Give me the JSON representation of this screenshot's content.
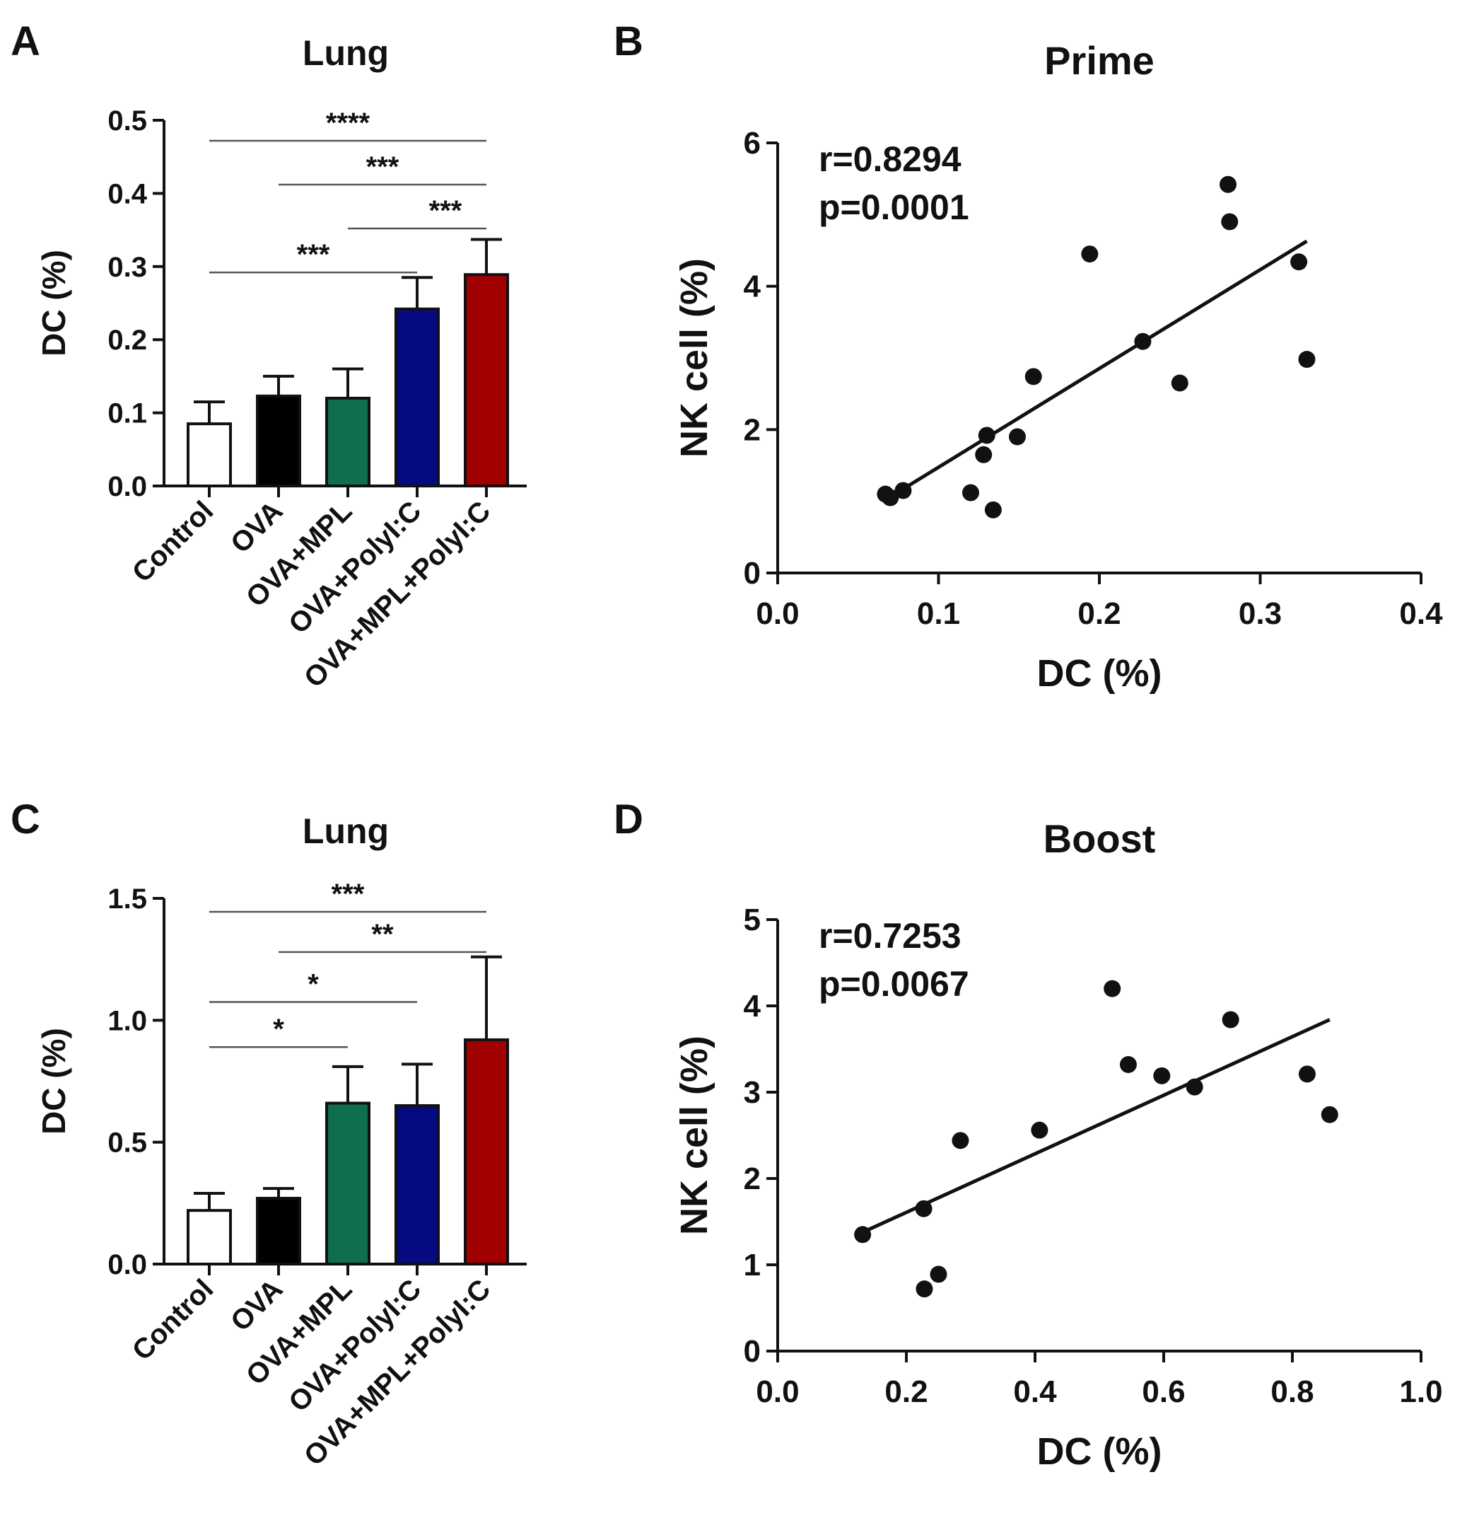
{
  "chart_data": [
    {
      "panel": "A",
      "type": "bar",
      "title": "Lung",
      "ylabel": "DC (%)",
      "xlabel": "",
      "ylim": [
        0,
        0.5
      ],
      "yticks": [
        "0.0",
        "0.1",
        "0.2",
        "0.3",
        "0.4",
        "0.5"
      ],
      "categories": [
        "Control",
        "OVA",
        "OVA+MPL",
        "OVA+PolyI:C",
        "OVA+MPL+PolyI:C"
      ],
      "values": [
        0.085,
        0.123,
        0.12,
        0.242,
        0.289
      ],
      "errors": [
        0.03,
        0.027,
        0.04,
        0.043,
        0.048
      ],
      "colors": [
        "#ffffff",
        "#000000",
        "#0f6e4e",
        "#050a80",
        "#a00000"
      ],
      "significance": [
        {
          "from": 0,
          "to": 4,
          "label": "****",
          "y": 0.472
        },
        {
          "from": 1,
          "to": 4,
          "label": "***",
          "y": 0.412
        },
        {
          "from": 2,
          "to": 4,
          "label": "***",
          "y": 0.352
        },
        {
          "from": 0,
          "to": 3,
          "label": "***",
          "y": 0.292
        }
      ]
    },
    {
      "panel": "B",
      "type": "scatter",
      "title": "Prime",
      "xlabel": "DC (%)",
      "ylabel": "NK cell (%)",
      "xlim": [
        0,
        0.4
      ],
      "ylim": [
        0,
        6
      ],
      "xticks": [
        "0.0",
        "0.1",
        "0.2",
        "0.3",
        "0.4"
      ],
      "yticks": [
        "0",
        "2",
        "4",
        "6"
      ],
      "stats": [
        "r=0.8294",
        "p=0.0001"
      ],
      "x": [
        0.067,
        0.07,
        0.078,
        0.12,
        0.128,
        0.13,
        0.134,
        0.149,
        0.159,
        0.194,
        0.227,
        0.25,
        0.28,
        0.281,
        0.324,
        0.329
      ],
      "y": [
        1.1,
        1.05,
        1.15,
        1.12,
        1.65,
        1.92,
        0.88,
        1.9,
        2.74,
        4.45,
        3.23,
        2.65,
        5.42,
        4.9,
        4.34,
        2.98
      ],
      "fit": {
        "x": [
          0.067,
          0.329
        ],
        "y": [
          1.02,
          4.63
        ]
      }
    },
    {
      "panel": "C",
      "type": "bar",
      "title": "Lung",
      "ylabel": "DC (%)",
      "xlabel": "",
      "ylim": [
        0,
        1.5
      ],
      "yticks": [
        "0.0",
        "0.5",
        "1.0",
        "1.5"
      ],
      "categories": [
        "Control",
        "OVA",
        "OVA+MPL",
        "OVA+PolyI:C",
        "OVA+MPL+PolyI:C"
      ],
      "values": [
        0.22,
        0.27,
        0.66,
        0.65,
        0.92
      ],
      "errors": [
        0.07,
        0.04,
        0.15,
        0.17,
        0.34
      ],
      "colors": [
        "#ffffff",
        "#000000",
        "#0f6e4e",
        "#050a80",
        "#a00000"
      ],
      "significance": [
        {
          "from": 0,
          "to": 4,
          "label": "***",
          "y": 1.445
        },
        {
          "from": 1,
          "to": 4,
          "label": "**",
          "y": 1.28
        },
        {
          "from": 0,
          "to": 3,
          "label": "*",
          "y": 1.075
        },
        {
          "from": 0,
          "to": 2,
          "label": "*",
          "y": 0.89
        }
      ]
    },
    {
      "panel": "D",
      "type": "scatter",
      "title": "Boost",
      "xlabel": "DC (%)",
      "ylabel": "NK cell (%)",
      "xlim": [
        0,
        1.0
      ],
      "ylim": [
        0,
        5
      ],
      "xticks": [
        "0.0",
        "0.2",
        "0.4",
        "0.6",
        "0.8",
        "1.0"
      ],
      "yticks": [
        "0",
        "1",
        "2",
        "3",
        "4",
        "5"
      ],
      "stats": [
        "r=0.7253",
        "p=0.0067"
      ],
      "x": [
        0.132,
        0.227,
        0.228,
        0.25,
        0.284,
        0.407,
        0.52,
        0.545,
        0.597,
        0.648,
        0.704,
        0.823,
        0.858
      ],
      "y": [
        1.35,
        1.65,
        0.72,
        0.89,
        2.44,
        2.56,
        4.2,
        3.32,
        3.19,
        3.06,
        3.84,
        3.21,
        2.74
      ],
      "fit": {
        "x": [
          0.13,
          0.858
        ],
        "y": [
          1.37,
          3.84
        ]
      }
    }
  ],
  "panel_letters": [
    "A",
    "B",
    "C",
    "D"
  ]
}
